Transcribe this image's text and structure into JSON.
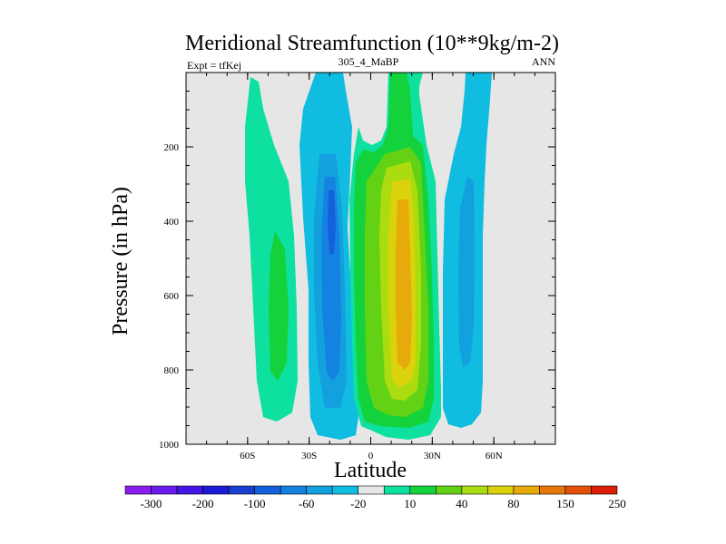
{
  "chart_data": {
    "type": "heatmap",
    "title": "Meridional Streamfunction (10**9kg/m-2)",
    "subtitle_center": "305_4_MaBP",
    "subtitle_left": "Expt = tfKej",
    "subtitle_right": "ANN",
    "xlabel": "Latitude",
    "ylabel": "Pressure (in hPa)",
    "xlim": [
      -90,
      90
    ],
    "ylim": [
      1000,
      0
    ],
    "x_ticks": [
      {
        "value": -60,
        "label": "60S"
      },
      {
        "value": -30,
        "label": "30S"
      },
      {
        "value": 0,
        "label": "0"
      },
      {
        "value": 30,
        "label": "30N"
      },
      {
        "value": 60,
        "label": "60N"
      }
    ],
    "y_ticks": [
      {
        "value": 200,
        "label": "200"
      },
      {
        "value": 400,
        "label": "400"
      },
      {
        "value": 600,
        "label": "600"
      },
      {
        "value": 800,
        "label": "800"
      },
      {
        "value": 1000,
        "label": "1000"
      }
    ],
    "background_color": "#e6e6e6",
    "colorbar": {
      "colors": [
        "#8a1cf0",
        "#6a19ee",
        "#4415e8",
        "#1d19d9",
        "#1840d0",
        "#1560dc",
        "#1482e0",
        "#12a0de",
        "#10bce0",
        "#e6e6e6",
        "#0ee0a0",
        "#14d23c",
        "#64d214",
        "#aadc10",
        "#dcd20c",
        "#e6aa0a",
        "#e6780a",
        "#e6500a",
        "#dc1e0a"
      ],
      "labels": [
        "-300",
        "-200",
        "-100",
        "-60",
        "-20",
        "10",
        "40",
        "80",
        "150",
        "250"
      ]
    },
    "field": {
      "description": "contoured streamfunction values in 10**9 kg/s; bands listed by level",
      "cells": [
        {
          "region": "SH polar cell (~60S-45S)",
          "level": 10,
          "color": "#0ee0a0"
        },
        {
          "region": "SH Ferrel cell (~30S-15S)",
          "level": -20,
          "color": "#10bce0"
        },
        {
          "region": "SH Ferrel cell core",
          "level": -60,
          "color": "#1482e0"
        },
        {
          "region": "Hadley cell (~5S-25N)",
          "level": 40,
          "color": "#14d23c"
        },
        {
          "region": "Hadley cell core (~15N, 400-900 hPa)",
          "level": 150,
          "color": "#e6aa0a"
        },
        {
          "region": "NH Ferrel cell (~35N-55N)",
          "level": -20,
          "color": "#10bce0"
        }
      ]
    }
  }
}
